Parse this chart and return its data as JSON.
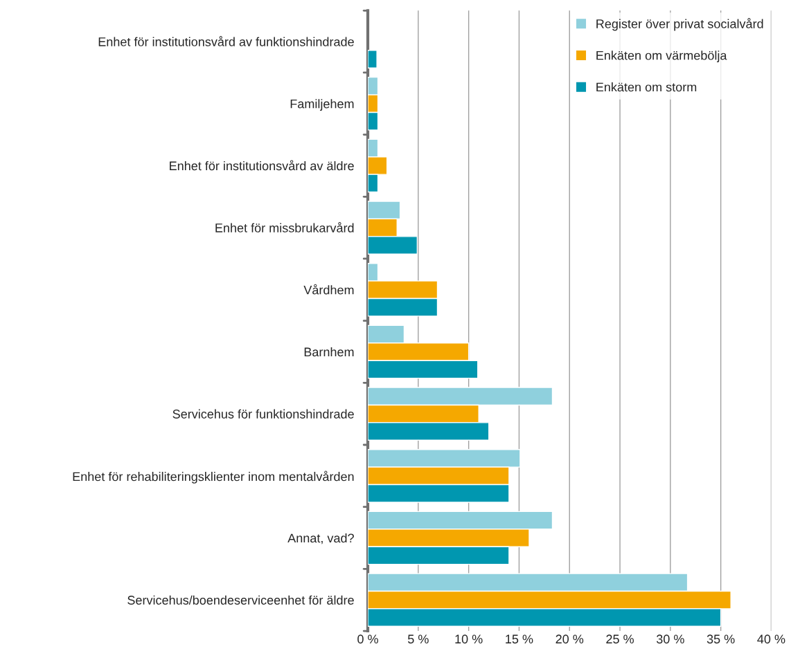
{
  "chart_data": {
    "type": "bar",
    "orientation": "horizontal",
    "categories": [
      "Enhet för institutionsvård av funktionshindrade",
      "Familjehem",
      "Enhet för institutionsvård av äldre",
      "Enhet för missbrukarvård",
      "Vårdhem",
      "Barnhem",
      "Servicehus för funktionshindrade",
      "Enhet för rehabiliteringsklienter inom mentalvården",
      "Annat, vad?",
      "Servicehus/boendeserviceenhet för äldre"
    ],
    "series": [
      {
        "name": "Register över privat socialvård",
        "color": "#8fd0dd",
        "values": [
          null,
          1,
          1,
          3.2,
          1,
          3.6,
          18.3,
          15.1,
          18.3,
          31.7
        ]
      },
      {
        "name": "Enkäten om värmebölja",
        "color": "#f5a800",
        "values": [
          null,
          1,
          1.9,
          2.9,
          6.9,
          10,
          11,
          14,
          16,
          36
        ]
      },
      {
        "name": "Enkäten om storm",
        "color": "#0097b0",
        "values": [
          0.9,
          1,
          1,
          4.9,
          6.9,
          10.9,
          12,
          14,
          14,
          35
        ]
      }
    ],
    "xlim": [
      0,
      40
    ],
    "xticks": [
      {
        "value": 0,
        "label": "0 %"
      },
      {
        "value": 5,
        "label": "5 %"
      },
      {
        "value": 10,
        "label": "10 %"
      },
      {
        "value": 15,
        "label": "15 %"
      },
      {
        "value": 20,
        "label": "20 %"
      },
      {
        "value": 25,
        "label": "25 %"
      },
      {
        "value": 30,
        "label": "30 %"
      },
      {
        "value": 35,
        "label": "35 %"
      },
      {
        "value": 40,
        "label": "40 %"
      }
    ],
    "grid": "x",
    "legend": "top right"
  }
}
